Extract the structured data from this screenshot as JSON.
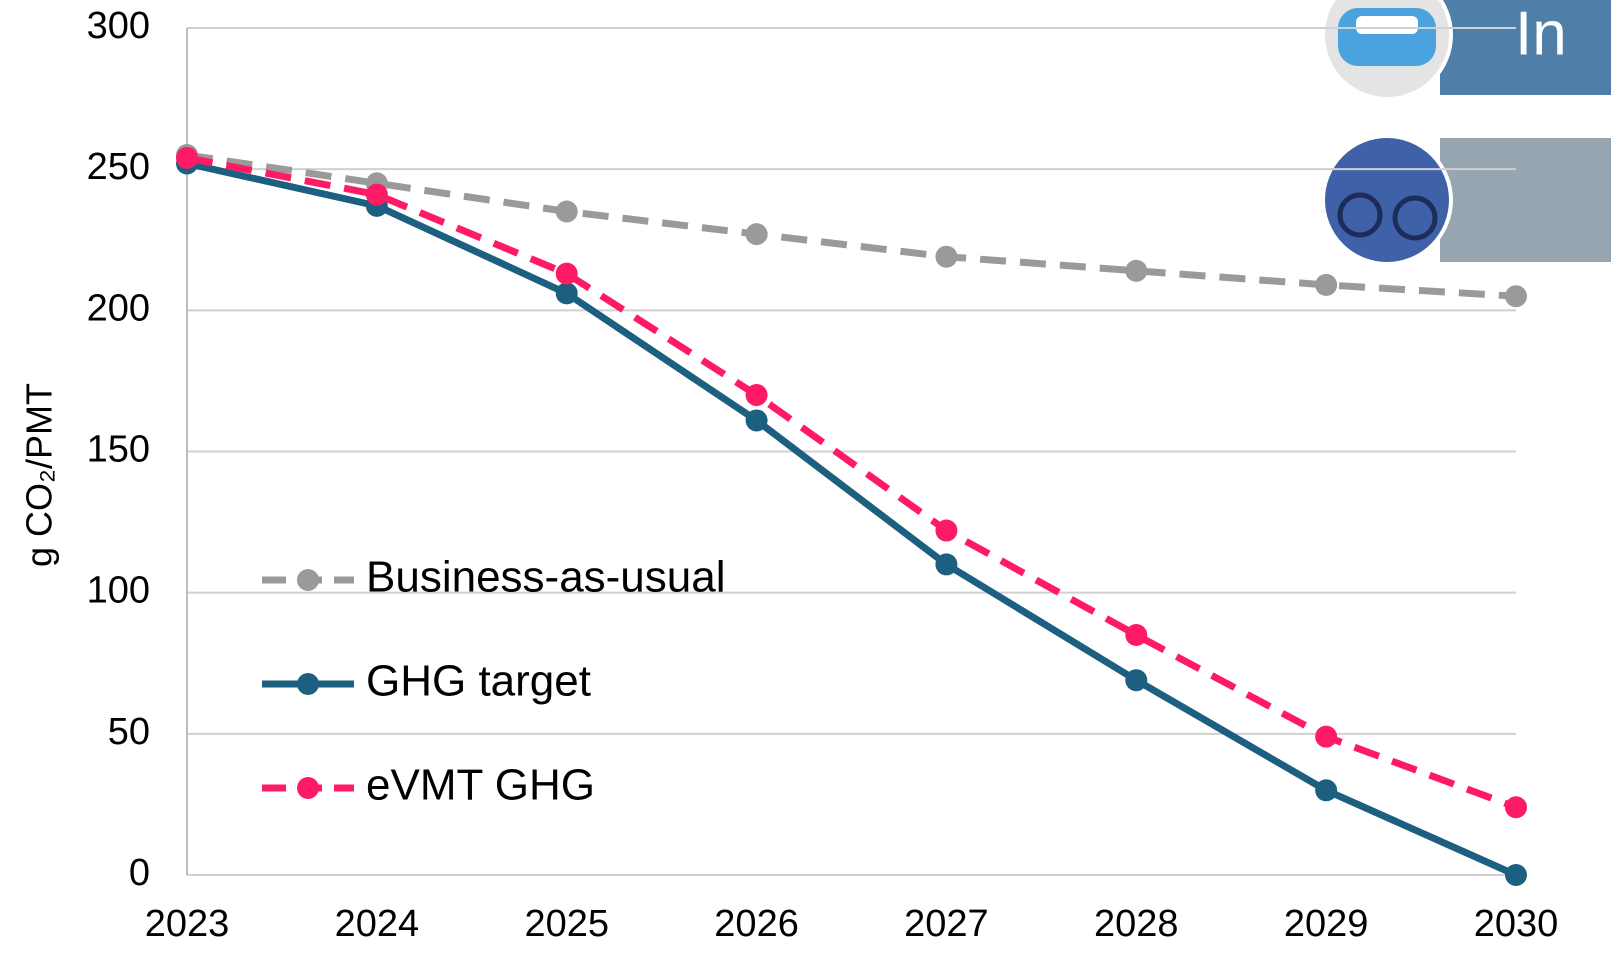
{
  "chart_data": {
    "type": "line",
    "y_label": "g CO₂/PMT",
    "categories": [
      "2023",
      "2024",
      "2025",
      "2026",
      "2027",
      "2028",
      "2029",
      "2030"
    ],
    "series": [
      {
        "name": "Business-as-usual",
        "color": "#9a9a9a",
        "style": "dashed",
        "values": [
          255,
          245,
          235,
          227,
          219,
          214,
          209,
          205
        ]
      },
      {
        "name": "GHG target",
        "color": "#1c5f80",
        "style": "solid",
        "values": [
          252,
          237,
          206,
          161,
          110,
          69,
          30,
          0
        ]
      },
      {
        "name": "eVMT GHG",
        "color": "#ff1a66",
        "style": "dashed",
        "values": [
          254,
          241,
          213,
          170,
          122,
          85,
          49,
          24
        ]
      }
    ],
    "ylim": [
      0,
      300
    ],
    "yticks": [
      0,
      50,
      100,
      150,
      200,
      250,
      300
    ],
    "grid": true,
    "legend": "lower left",
    "banner_text": "In"
  }
}
